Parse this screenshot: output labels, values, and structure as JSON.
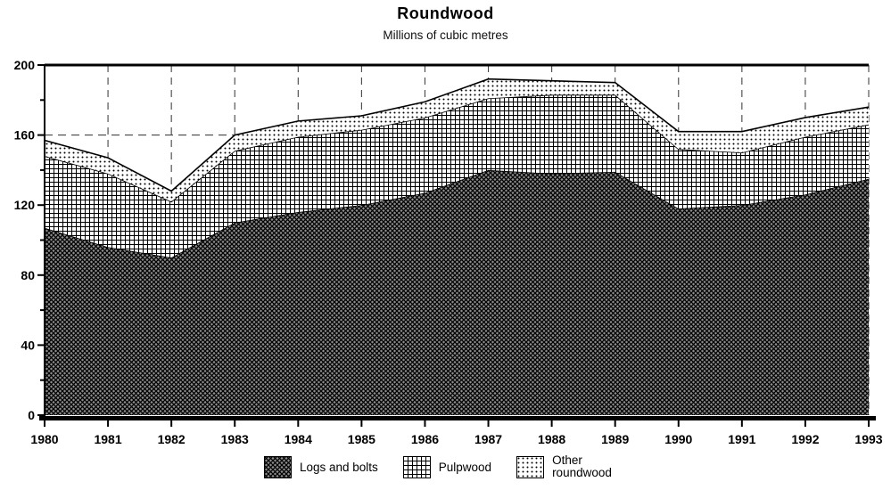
{
  "chart_data": {
    "type": "area",
    "stacked": true,
    "title": "Roundwood",
    "subtitle": "Millions of cubic metres",
    "categories": [
      "1980",
      "1981",
      "1982",
      "1983",
      "1984",
      "1985",
      "1986",
      "1987",
      "1988",
      "1989",
      "1990",
      "1991",
      "1992",
      "1993"
    ],
    "series": [
      {
        "name": "Logs and bolts",
        "pattern": "crosshatch",
        "values": [
          107,
          96,
          90,
          110,
          116,
          120,
          127,
          140,
          138,
          139,
          118,
          120,
          126,
          135
        ]
      },
      {
        "name": "Pulpwood",
        "pattern": "grid",
        "values": [
          41,
          42,
          32,
          41,
          43,
          43,
          43,
          41,
          45,
          44,
          34,
          30,
          33,
          31
        ]
      },
      {
        "name": "Other roundwood",
        "pattern": "dots",
        "values": [
          9,
          9,
          6,
          9,
          9,
          8,
          9,
          11,
          8,
          7,
          10,
          12,
          11,
          10
        ]
      }
    ],
    "ylim": [
      0,
      200
    ],
    "yticks": [
      {
        "v": 0,
        "label": "0"
      },
      {
        "v": 20
      },
      {
        "v": 40,
        "label": "40"
      },
      {
        "v": 60
      },
      {
        "v": 80,
        "label": "80"
      },
      {
        "v": 100
      },
      {
        "v": 120,
        "label": "120"
      },
      {
        "v": 140
      },
      {
        "v": 160,
        "label": "160"
      },
      {
        "v": 180
      },
      {
        "v": 200,
        "label": "200"
      }
    ],
    "grid_y": [
      160
    ],
    "grid_vertical": true,
    "legend_position": "bottom",
    "axis_color": "#000000",
    "grid_color": "#444444"
  }
}
